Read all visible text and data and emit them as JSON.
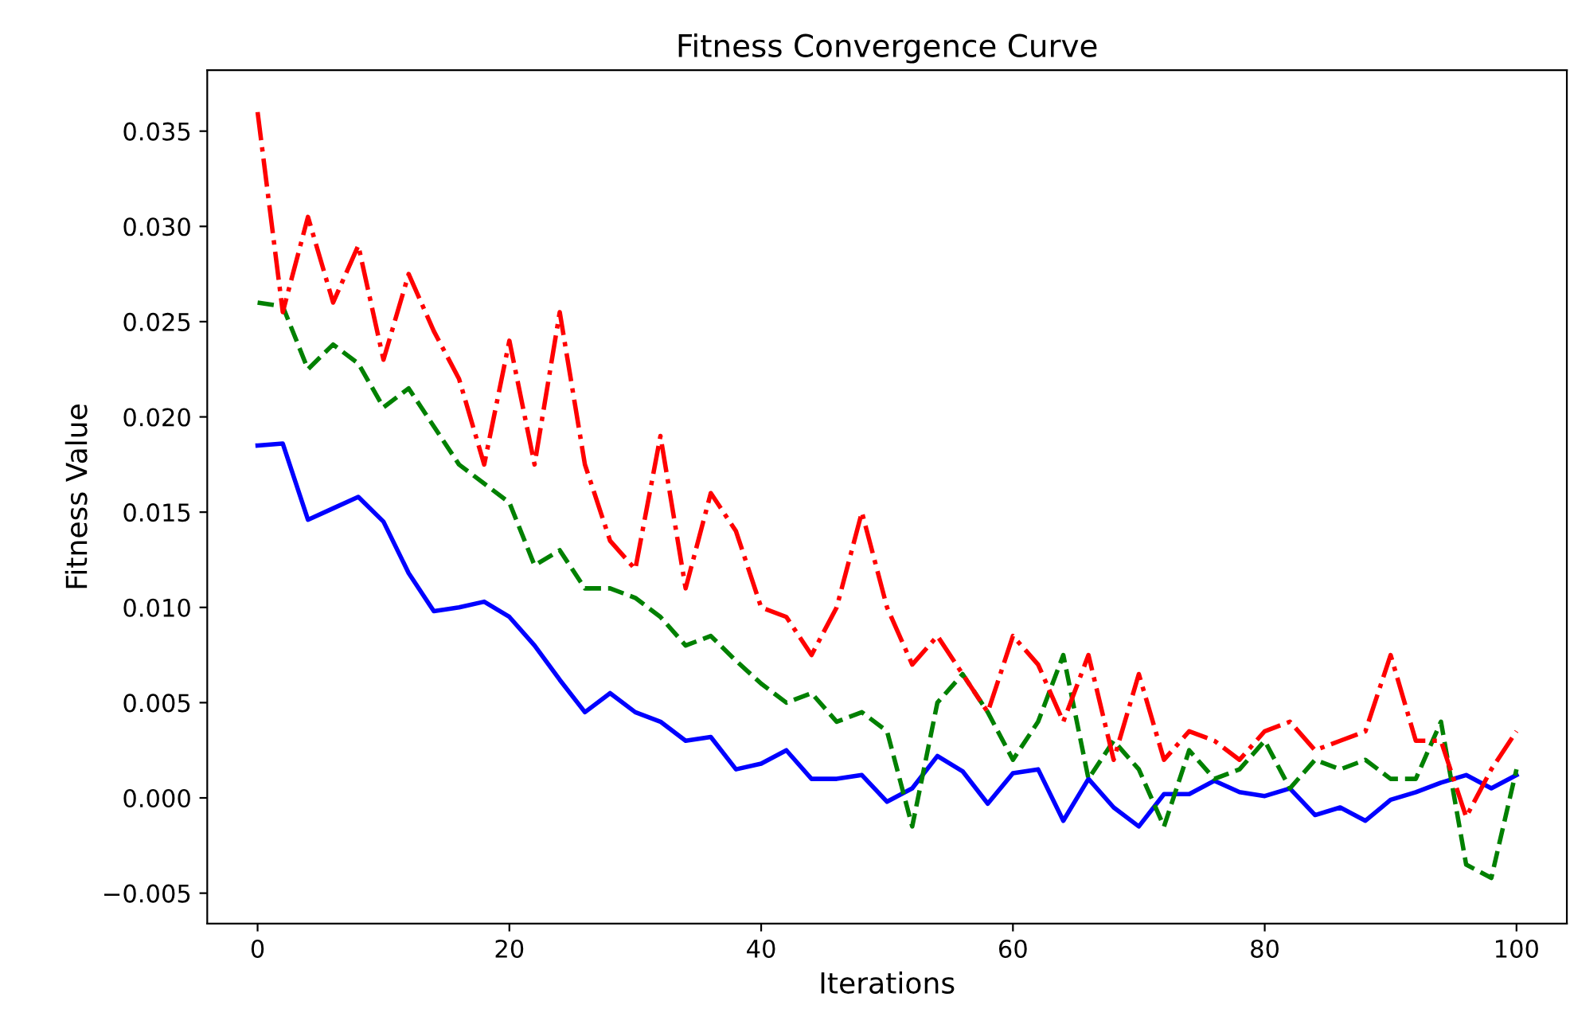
{
  "chart_data": {
    "type": "line",
    "title": "Fitness Convergence Curve",
    "xlabel": "Iterations",
    "ylabel": "Fitness Value",
    "x": [
      0,
      2,
      4,
      6,
      8,
      10,
      12,
      14,
      16,
      18,
      20,
      22,
      24,
      26,
      28,
      30,
      32,
      34,
      36,
      38,
      40,
      42,
      44,
      46,
      48,
      50,
      52,
      54,
      56,
      58,
      60,
      62,
      64,
      66,
      68,
      70,
      72,
      74,
      76,
      78,
      80,
      82,
      84,
      86,
      88,
      90,
      92,
      94,
      96,
      98,
      100
    ],
    "xlim": [
      -4,
      104
    ],
    "xticks": [
      0,
      20,
      40,
      60,
      80,
      100
    ],
    "ylim": [
      -0.0066,
      0.0382
    ],
    "yticks": [
      {
        "value": -0.005,
        "label": "−0.005"
      },
      {
        "value": 0,
        "label": "0.000"
      },
      {
        "value": 0.005,
        "label": "0.005"
      },
      {
        "value": 0.01,
        "label": "0.010"
      },
      {
        "value": 0.015,
        "label": "0.015"
      },
      {
        "value": 0.02,
        "label": "0.020"
      },
      {
        "value": 0.025,
        "label": "0.025"
      },
      {
        "value": 0.03,
        "label": "0.030"
      },
      {
        "value": 0.035,
        "label": "0.035"
      }
    ],
    "grid": false,
    "legend": false,
    "series": [
      {
        "color": "#0000ff",
        "line_style": "solid",
        "values": [
          0.0185,
          0.0186,
          0.0146,
          0.0152,
          0.0158,
          0.0145,
          0.0118,
          0.0098,
          0.01,
          0.0103,
          0.0095,
          0.008,
          0.0062,
          0.0045,
          0.0055,
          0.0045,
          0.004,
          0.003,
          0.0032,
          0.0015,
          0.0018,
          0.0025,
          0.001,
          0.001,
          0.0012,
          -0.0002,
          0.0005,
          0.0022,
          0.0014,
          -0.0003,
          0.0013,
          0.0015,
          -0.0012,
          0.001,
          -0.0005,
          -0.0015,
          0.0002,
          0.0002,
          0.0009,
          0.0003,
          0.0001,
          0.0005,
          -0.0009,
          -0.0005,
          -0.0012,
          -0.0001,
          0.0003,
          0.0008,
          0.0012,
          0.0005,
          0.0012
        ]
      },
      {
        "color": "#008000",
        "line_style": "dashed",
        "values": [
          0.026,
          0.0258,
          0.0225,
          0.0238,
          0.0228,
          0.0205,
          0.0215,
          0.0195,
          0.0175,
          0.0165,
          0.0155,
          0.0122,
          0.013,
          0.011,
          0.011,
          0.0105,
          0.0095,
          0.008,
          0.0085,
          0.0072,
          0.006,
          0.005,
          0.0055,
          0.004,
          0.0045,
          0.0035,
          -0.0015,
          0.005,
          0.0065,
          0.0045,
          0.002,
          0.004,
          0.0075,
          0.001,
          0.003,
          0.0015,
          -0.0015,
          0.0025,
          0.001,
          0.0015,
          0.003,
          0.0005,
          0.002,
          0.0015,
          0.002,
          0.001,
          0.001,
          0.004,
          -0.0035,
          -0.0042,
          0.0015
        ]
      },
      {
        "color": "#ff0000",
        "line_style": "dashdot",
        "values": [
          0.036,
          0.0255,
          0.0305,
          0.026,
          0.029,
          0.023,
          0.0275,
          0.0245,
          0.022,
          0.0175,
          0.024,
          0.0175,
          0.0255,
          0.0175,
          0.0135,
          0.012,
          0.019,
          0.011,
          0.016,
          0.014,
          0.01,
          0.0095,
          0.0075,
          0.01,
          0.015,
          0.01,
          0.007,
          0.0085,
          0.0065,
          0.0045,
          0.0085,
          0.007,
          0.004,
          0.0075,
          0.002,
          0.0065,
          0.002,
          0.0035,
          0.003,
          0.002,
          0.0035,
          0.004,
          0.0025,
          0.003,
          0.0035,
          0.0075,
          0.003,
          0.003,
          -0.001,
          0.0015,
          0.0035
        ]
      }
    ]
  }
}
